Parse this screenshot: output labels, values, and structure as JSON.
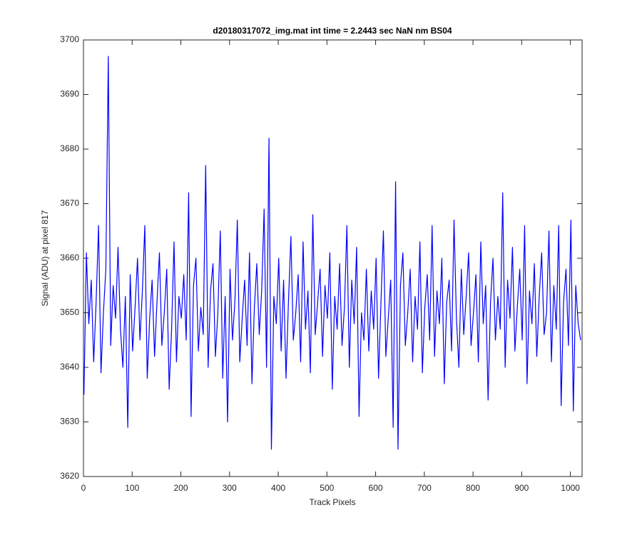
{
  "chart_data": {
    "type": "line",
    "title": "d20180317072_img.mat int time = 2.2443 sec  NaN nm BS04",
    "x_label": "Track Pixels",
    "y_label": "Signal (ADU) at pixel 817",
    "xlim": [
      0,
      1024
    ],
    "xticks": [
      0,
      100,
      200,
      300,
      400,
      500,
      600,
      700,
      800,
      900,
      1000
    ],
    "ylim": [
      3620,
      3700
    ],
    "yticks": [
      3620,
      3630,
      3640,
      3650,
      3660,
      3670,
      3680,
      3690,
      3700
    ],
    "grid": false,
    "x": [
      1,
      6,
      11,
      16,
      21,
      26,
      31,
      36,
      41,
      46,
      51,
      56,
      61,
      66,
      71,
      76,
      81,
      86,
      91,
      96,
      101,
      106,
      111,
      116,
      121,
      126,
      131,
      136,
      141,
      146,
      151,
      156,
      161,
      166,
      171,
      176,
      181,
      186,
      191,
      196,
      201,
      206,
      211,
      216,
      221,
      226,
      231,
      236,
      241,
      246,
      251,
      256,
      261,
      266,
      271,
      276,
      281,
      286,
      291,
      296,
      301,
      306,
      311,
      316,
      321,
      326,
      331,
      336,
      341,
      346,
      351,
      356,
      361,
      366,
      371,
      376,
      381,
      386,
      391,
      396,
      401,
      406,
      411,
      416,
      421,
      426,
      431,
      436,
      441,
      446,
      451,
      456,
      461,
      466,
      471,
      476,
      481,
      486,
      491,
      496,
      501,
      506,
      511,
      516,
      521,
      526,
      531,
      536,
      541,
      546,
      551,
      556,
      561,
      566,
      571,
      576,
      581,
      586,
      591,
      596,
      601,
      606,
      611,
      616,
      621,
      626,
      631,
      636,
      641,
      646,
      651,
      656,
      661,
      666,
      671,
      676,
      681,
      686,
      691,
      696,
      701,
      706,
      711,
      716,
      721,
      726,
      731,
      736,
      741,
      746,
      751,
      756,
      761,
      766,
      771,
      776,
      781,
      786,
      791,
      796,
      801,
      806,
      811,
      816,
      821,
      826,
      831,
      836,
      841,
      846,
      851,
      856,
      861,
      866,
      871,
      876,
      881,
      886,
      891,
      896,
      901,
      906,
      911,
      916,
      921,
      926,
      931,
      936,
      941,
      946,
      951,
      956,
      961,
      966,
      971,
      976,
      981,
      986,
      991,
      996,
      1001,
      1006,
      1011,
      1016,
      1021
    ],
    "series": [
      {
        "color": "#0000ff",
        "values": [
          3635,
          3661,
          3648,
          3656,
          3641,
          3652,
          3666,
          3639,
          3650,
          3658,
          3697,
          3644,
          3655,
          3649,
          3662,
          3647,
          3640,
          3653,
          3629,
          3657,
          3643,
          3651,
          3660,
          3645,
          3654,
          3666,
          3638,
          3649,
          3656,
          3642,
          3652,
          3661,
          3644,
          3650,
          3658,
          3636,
          3647,
          3663,
          3641,
          3653,
          3649,
          3657,
          3645,
          3672,
          3631,
          3655,
          3660,
          3643,
          3651,
          3646,
          3677,
          3640,
          3654,
          3659,
          3642,
          3650,
          3665,
          3638,
          3653,
          3630,
          3658,
          3645,
          3652,
          3667,
          3641,
          3649,
          3656,
          3644,
          3661,
          3637,
          3651,
          3659,
          3646,
          3654,
          3669,
          3640,
          3682,
          3625,
          3653,
          3648,
          3660,
          3643,
          3656,
          3638,
          3652,
          3664,
          3645,
          3650,
          3657,
          3641,
          3663,
          3647,
          3654,
          3639,
          3668,
          3646,
          3652,
          3658,
          3642,
          3655,
          3649,
          3661,
          3636,
          3653,
          3647,
          3659,
          3644,
          3651,
          3666,
          3640,
          3656,
          3648,
          3662,
          3631,
          3650,
          3645,
          3658,
          3643,
          3654,
          3647,
          3660,
          3638,
          3652,
          3665,
          3642,
          3649,
          3656,
          3629,
          3674,
          3625,
          3655,
          3661,
          3644,
          3650,
          3658,
          3641,
          3653,
          3647,
          3663,
          3639,
          3651,
          3657,
          3645,
          3666,
          3642,
          3654,
          3648,
          3660,
          3637,
          3652,
          3656,
          3643,
          3667,
          3649,
          3640,
          3658,
          3646,
          3653,
          3661,
          3644,
          3650,
          3657,
          3641,
          3663,
          3648,
          3655,
          3634,
          3652,
          3660,
          3645,
          3653,
          3647,
          3672,
          3640,
          3656,
          3649,
          3662,
          3643,
          3651,
          3658,
          3645,
          3666,
          3637,
          3654,
          3648,
          3659,
          3642,
          3653,
          3661,
          3646,
          3650,
          3665,
          3641,
          3655,
          3647,
          3666,
          3633,
          3652,
          3658,
          3644,
          3667,
          3632,
          3655,
          3648,
          3645
        ]
      }
    ]
  }
}
